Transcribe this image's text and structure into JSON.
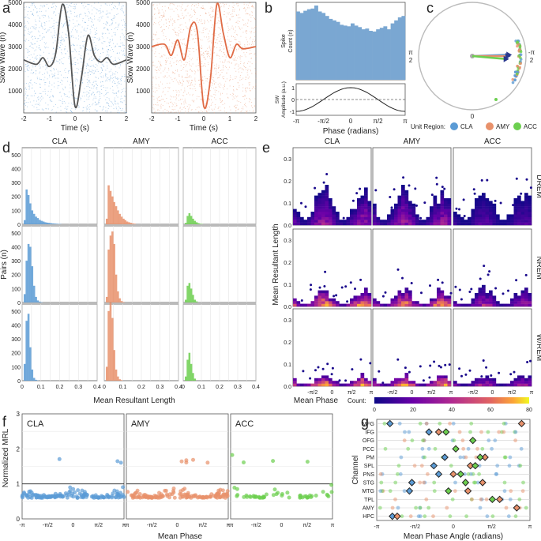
{
  "colors": {
    "CLA": "#5b9bd5",
    "AMY": "#e8916b",
    "ACC": "#6ccf4f",
    "hist": "#7aa7d2"
  },
  "panels": {
    "a": "a",
    "b": "b",
    "c": "c",
    "d": "d",
    "e": "e",
    "f": "f",
    "g": "g"
  },
  "chart_data": [
    {
      "panel": "a",
      "type": "scatter",
      "subplots": [
        {
          "region": "CLA",
          "ylabel": "Slow Wave (n)",
          "xlabel": "Time (s)",
          "xticks": [
            "-2",
            "-1",
            "0",
            "1",
            "2"
          ],
          "yticks": [
            "1000",
            "2000",
            "3000",
            "4000",
            "5000"
          ],
          "ylim": [
            0,
            5000
          ],
          "xlim": [
            -2,
            2
          ],
          "wave": {
            "x": [
              -2,
              -1.5,
              -1.25,
              -1,
              -0.75,
              -0.5,
              -0.25,
              0,
              0.25,
              0.5,
              0.75,
              1,
              1.25,
              1.5,
              2
            ],
            "y": [
              2400,
              2200,
              2500,
              2100,
              2700,
              4900,
              3600,
              300,
              1600,
              3500,
              2600,
              2300,
              2500,
              2200,
              2400
            ]
          }
        },
        {
          "region": "AMY",
          "ylabel": "Slow Wave (n)",
          "xlabel": "Time (s)",
          "xticks": [
            "-2",
            "-1",
            "0",
            "1",
            "2"
          ],
          "yticks": [
            "1000",
            "2000",
            "3000",
            "4000",
            "5000"
          ],
          "ylim": [
            0,
            5000
          ],
          "xlim": [
            -2,
            2
          ],
          "wave": {
            "x": [
              -2,
              -1.5,
              -1.25,
              -1,
              -0.75,
              -0.5,
              -0.25,
              0,
              0.25,
              0.5,
              0.75,
              1,
              1.25,
              1.5,
              2
            ],
            "y": [
              3000,
              3100,
              2600,
              3300,
              2400,
              3900,
              3700,
              300,
              1500,
              4900,
              3600,
              2500,
              3100,
              2900,
              3000
            ]
          }
        }
      ]
    },
    {
      "panel": "b",
      "type": "bar",
      "ylabel_top": "Spike Count (n)",
      "ylabel_bottom": "SW Amplitude (a.u.)",
      "xlabel": "Phase (radians)",
      "xticks": [
        "-π",
        "-π/2",
        "0",
        "π/2",
        "π"
      ],
      "yticks_bottom": [
        "-1",
        "0",
        "1"
      ],
      "values": [
        0.92,
        0.9,
        0.93,
        0.95,
        0.96,
        1.0,
        0.92,
        0.9,
        0.86,
        0.82,
        0.8,
        0.78,
        0.74,
        0.73,
        0.72,
        0.76,
        0.73,
        0.71,
        0.68,
        0.69,
        0.66,
        0.65,
        0.68,
        0.7,
        0.72,
        0.68,
        0.76,
        0.8,
        0.84,
        0.86
      ]
    },
    {
      "panel": "c",
      "type": "polar",
      "ticks": {
        "top": "0",
        "left": "π/2",
        "right": "-π/2",
        "bottom": "0"
      },
      "legend_title": "Unit Region:",
      "legend": [
        "CLA",
        "AMY",
        "ACC"
      ],
      "vectors": [
        {
          "region": "CLA",
          "angle_deg": 2,
          "length": 0.68
        },
        {
          "region": "AMY",
          "angle_deg": 0,
          "length": 0.66
        },
        {
          "region": "ACC",
          "angle_deg": -5,
          "length": 0.63
        }
      ]
    },
    {
      "panel": "d",
      "type": "bar",
      "xlabel": "Mean Resultant Length",
      "ylabel": "Pairs (n)",
      "columns": [
        "CLA",
        "AMY",
        "ACC"
      ],
      "rows": [
        "DREM",
        "NREM",
        "W/REM"
      ],
      "xticks": [
        "0",
        "0.1",
        "0.2",
        "0.3",
        "0.4"
      ],
      "yticks": [
        "0",
        "100",
        "200",
        "300",
        "400",
        "500"
      ],
      "ylim": [
        0,
        550
      ],
      "xlim": [
        0,
        0.4
      ],
      "hists": {
        "CLA": {
          "DREM": [
            30,
            250,
            210,
            150,
            100,
            75,
            55,
            45,
            32,
            25,
            20,
            15,
            12,
            10,
            8,
            6,
            5,
            4,
            3,
            2
          ],
          "NREM": [
            60,
            300,
            420,
            400,
            260,
            120,
            40,
            15,
            6,
            3
          ],
          "W/REM": [
            120,
            430,
            480,
            240,
            80,
            20,
            6,
            2
          ]
        },
        "AMY": {
          "DREM": [
            40,
            280,
            240,
            200,
            160,
            130,
            100,
            75,
            55,
            40,
            30,
            20,
            15,
            10,
            6,
            4
          ],
          "NREM": [
            40,
            380,
            480,
            510,
            420,
            200,
            80,
            30,
            10,
            4
          ],
          "W/REM": [
            100,
            500,
            560,
            450,
            220,
            80,
            30,
            10,
            4
          ]
        },
        "ACC": {
          "DREM": [
            10,
            60,
            80,
            60,
            40,
            25,
            15,
            8,
            4,
            2
          ],
          "NREM": [
            20,
            120,
            140,
            100,
            55,
            20,
            8
          ],
          "W/REM": [
            30,
            150,
            200,
            120,
            55,
            15
          ]
        }
      }
    },
    {
      "panel": "e",
      "type": "heatmap",
      "xlabel": "Mean Phase",
      "ylabel": "Mean Resultant Length",
      "columns": [
        "CLA",
        "AMY",
        "ACC"
      ],
      "rows": [
        "DREM",
        "NREM",
        "W/REM"
      ],
      "xticks": [
        "-π/2",
        "0",
        "π/2",
        "π"
      ],
      "yticks": [
        "0.0",
        "0.1",
        "0.2",
        "0.3"
      ],
      "ylim": [
        0,
        0.35
      ],
      "colorbar": {
        "label": "Count:",
        "ticks": [
          "0",
          "20",
          "40",
          "60",
          "80"
        ],
        "range": [
          0,
          80
        ]
      }
    },
    {
      "panel": "f",
      "type": "scatter",
      "xlabel": "Mean Phase",
      "ylabel": "Normalized MRL",
      "columns": [
        "CLA",
        "AMY",
        "ACC"
      ],
      "xticks": [
        "-π",
        "-π/2",
        "0",
        "π/2",
        "π"
      ],
      "yticks": [
        "0",
        "1",
        "2",
        "3"
      ],
      "ylim": [
        0,
        3
      ],
      "reference_line": 1
    },
    {
      "panel": "g",
      "type": "scatter",
      "xlabel": "Mean Phase Angle (radians)",
      "ylabel": "Channel",
      "xticks": [
        "-π",
        "-π/2",
        "0",
        "π/2",
        "π"
      ],
      "channels": [
        "MFG",
        "IFG",
        "OFG",
        "PCC",
        "PM",
        "SPL",
        "PNS",
        "STG",
        "MTG",
        "TPL",
        "AMY",
        "HPC"
      ],
      "means": {
        "MFG": [
          {
            "region": "CLA",
            "x": -2.6
          },
          {
            "region": "AMY",
            "x": 2.8
          }
        ],
        "IFG": [
          {
            "region": "CLA",
            "x": -1.0
          },
          {
            "region": "AMY",
            "x": -0.6
          },
          {
            "region": "ACC",
            "x": -0.3
          }
        ],
        "OFG": [
          {
            "region": "ACC",
            "x": 0.8
          }
        ],
        "PCC": [
          {
            "region": "ACC",
            "x": 0.1
          }
        ],
        "PM": [
          {
            "region": "CLA",
            "x": -0.35
          },
          {
            "region": "AMY",
            "x": 1.3
          },
          {
            "region": "ACC",
            "x": 1.1
          }
        ],
        "SPL": [
          {
            "region": "CLA",
            "x": -0.8
          },
          {
            "region": "AMY",
            "x": 0.7
          },
          {
            "region": "ACC",
            "x": 0.9
          }
        ],
        "PNS": [
          {
            "region": "CLA",
            "x": -0.6
          },
          {
            "region": "AMY",
            "x": 0.0
          },
          {
            "region": "ACC",
            "x": 0.3
          }
        ],
        "STG": [
          {
            "region": "CLA",
            "x": -1.7
          },
          {
            "region": "AMY",
            "x": 1.2
          },
          {
            "region": "ACC",
            "x": 0.5
          }
        ],
        "MTG": [
          {
            "region": "CLA",
            "x": -1.8
          },
          {
            "region": "AMY",
            "x": 0.6
          },
          {
            "region": "ACC",
            "x": -0.2
          }
        ],
        "TPL": [
          {
            "region": "AMY",
            "x": 1.9
          },
          {
            "region": "ACC",
            "x": 1.6
          }
        ],
        "AMY": [
          {
            "region": "AMY",
            "x": 2.6
          }
        ],
        "HPC": [
          {
            "region": "CLA",
            "x": -2.5
          },
          {
            "region": "AMY",
            "x": -2.3
          }
        ]
      }
    }
  ]
}
